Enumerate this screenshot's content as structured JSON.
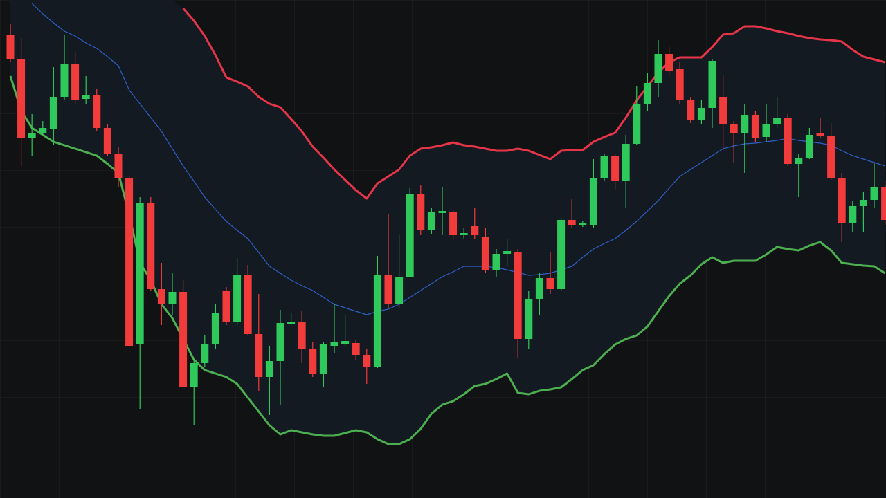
{
  "chart_data": {
    "type": "candlestick",
    "open": [
      670,
      635,
      520,
      528,
      533,
      580,
      627,
      577,
      582,
      535,
      498,
      462,
      222,
      427,
      302,
      280,
      298,
      160,
      195,
      222,
      300,
      255,
      322,
      237,
      175,
      198,
      252,
      255,
      215,
      179,
      220,
      222,
      224,
      207,
      190,
      322,
      280,
      320,
      440,
      387,
      412,
      413,
      380,
      393,
      378,
      330,
      353,
      355,
      230,
      288,
      318,
      302,
      402,
      395,
      395,
      462,
      495,
      458,
      512,
      570,
      600,
      642,
      620,
      575,
      547,
      564,
      580,
      540,
      527,
      554,
      522,
      540,
      550,
      483,
      492,
      527,
      523,
      463,
      398,
      422,
      431,
      450
    ],
    "high": [
      685,
      665,
      555,
      545,
      623,
      670,
      645,
      610,
      592,
      540,
      508,
      465,
      435,
      435,
      340,
      325,
      315,
      200,
      235,
      280,
      305,
      347,
      337,
      295,
      220,
      272,
      268,
      270,
      225,
      225,
      280,
      265,
      228,
      215,
      350,
      410,
      380,
      448,
      452,
      420,
      450,
      417,
      390,
      420,
      390,
      360,
      375,
      360,
      300,
      325,
      355,
      405,
      432,
      400,
      490,
      498,
      498,
      525,
      595,
      615,
      662,
      652,
      630,
      580,
      575,
      635,
      612,
      545,
      570,
      560,
      570,
      580,
      555,
      498,
      535,
      550,
      542,
      470,
      430,
      442,
      485,
      458
    ],
    "low": [
      630,
      480,
      495,
      525,
      510,
      575,
      570,
      570,
      530,
      495,
      450,
      220,
      128,
      300,
      250,
      265,
      160,
      105,
      190,
      215,
      250,
      250,
      235,
      155,
      120,
      135,
      250,
      195,
      175,
      160,
      210,
      220,
      200,
      165,
      188,
      275,
      275,
      320,
      380,
      382,
      380,
      375,
      375,
      375,
      325,
      320,
      335,
      202,
      215,
      265,
      295,
      300,
      390,
      392,
      390,
      458,
      445,
      420,
      510,
      560,
      580,
      612,
      570,
      542,
      540,
      535,
      505,
      485,
      470,
      515,
      515,
      535,
      480,
      435,
      490,
      520,
      460,
      370,
      385,
      385,
      420,
      395
    ],
    "close": [
      635,
      520,
      528,
      535,
      580,
      627,
      575,
      582,
      535,
      498,
      462,
      220,
      427,
      302,
      280,
      298,
      160,
      195,
      222,
      268,
      255,
      322,
      237,
      175,
      198,
      253,
      255,
      215,
      179,
      222,
      226,
      227,
      207,
      190,
      322,
      280,
      320,
      440,
      387,
      413,
      415,
      380,
      383,
      380,
      330,
      353,
      357,
      230,
      288,
      318,
      302,
      402,
      395,
      397,
      463,
      495,
      458,
      512,
      570,
      600,
      642,
      618,
      575,
      547,
      564,
      632,
      540,
      527,
      554,
      520,
      540,
      550,
      483,
      492,
      525,
      523,
      463,
      398,
      422,
      431,
      450,
      402
    ],
    "up_color": "#2fc95b",
    "down_color": "#f23b3b",
    "bands": [
      {
        "color": "#e63548",
        "values": [
          null,
          null,
          null,
          null,
          null,
          null,
          null,
          null,
          null,
          null,
          null,
          null,
          null,
          null,
          null,
          null,
          708,
          690,
          668,
          640,
          608,
          602,
          595,
          580,
          570,
          565,
          548,
          530,
          508,
          492,
          475,
          460,
          445,
          433,
          455,
          465,
          475,
          495,
          505,
          507,
          510,
          514,
          510,
          508,
          505,
          502,
          502,
          505,
          502,
          496,
          490,
          502,
          503,
          503,
          515,
          522,
          528,
          550,
          575,
          595,
          615,
          630,
          637,
          637,
          637,
          652,
          670,
          672,
          682,
          682,
          679,
          675,
          672,
          668,
          665,
          663,
          662,
          660,
          648,
          638,
          634,
          630
        ]
      },
      {
        "color": "#2f5fc8",
        "values": [
          null,
          null,
          715,
          700,
          687,
          675,
          668,
          658,
          650,
          638,
          625,
          590,
          570,
          550,
          530,
          505,
          480,
          458,
          435,
          417,
          400,
          387,
          375,
          355,
          335,
          325,
          315,
          307,
          300,
          290,
          280,
          275,
          270,
          265,
          270,
          273,
          280,
          290,
          300,
          310,
          320,
          327,
          335,
          335,
          335,
          333,
          330,
          326,
          322,
          323,
          325,
          330,
          335,
          348,
          360,
          368,
          375,
          387,
          400,
          415,
          430,
          448,
          465,
          475,
          485,
          495,
          505,
          509,
          512,
          513,
          515,
          517,
          520,
          517,
          515,
          513,
          510,
          502,
          495,
          490,
          485,
          480
        ]
      },
      {
        "color": "#4caf50",
        "values": [
          610,
          560,
          535,
          525,
          515,
          510,
          505,
          500,
          495,
          483,
          470,
          410,
          340,
          315,
          280,
          260,
          230,
          200,
          185,
          180,
          175,
          165,
          145,
          125,
          105,
          92,
          98,
          95,
          92,
          90,
          90,
          94,
          98,
          95,
          85,
          78,
          78,
          85,
          100,
          122,
          135,
          140,
          150,
          162,
          165,
          172,
          180,
          152,
          150,
          155,
          157,
          160,
          172,
          185,
          192,
          208,
          222,
          230,
          235,
          248,
          270,
          292,
          310,
          322,
          338,
          348,
          340,
          343,
          343,
          343,
          352,
          363,
          360,
          358,
          365,
          370,
          358,
          340,
          338,
          336,
          335,
          325
        ]
      }
    ],
    "band_fill": "#141a22",
    "xlim": [
      -0.96,
      81.09
    ],
    "ylim": [
      0,
      720
    ]
  }
}
